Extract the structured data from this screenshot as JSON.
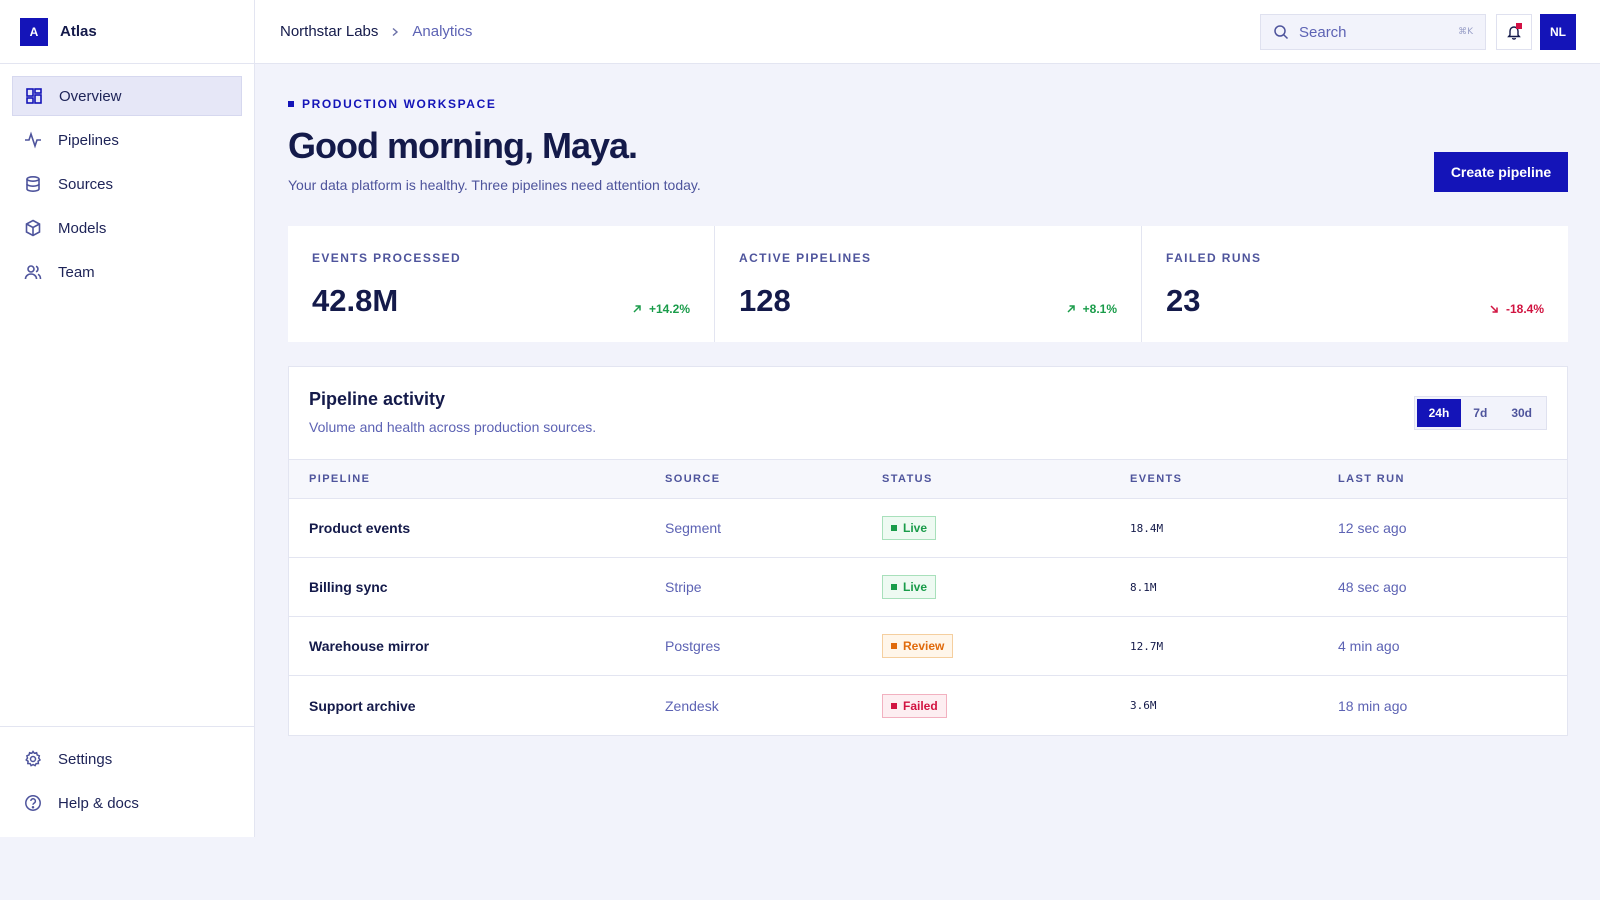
{
  "brand": {
    "logo_letter": "A",
    "name": "Atlas"
  },
  "sidebar": {
    "items": [
      {
        "label": "Overview",
        "icon": "dashboard-icon",
        "active": true
      },
      {
        "label": "Pipelines",
        "icon": "activity-icon"
      },
      {
        "label": "Sources",
        "icon": "database-icon"
      },
      {
        "label": "Models",
        "icon": "cube-icon"
      },
      {
        "label": "Team",
        "icon": "users-icon"
      }
    ],
    "bottom_items": [
      {
        "label": "Settings",
        "icon": "gear-icon"
      },
      {
        "label": "Help & docs",
        "icon": "help-icon"
      }
    ]
  },
  "topbar": {
    "breadcrumb_root": "Northstar Labs",
    "breadcrumb_current": "Analytics",
    "search_placeholder": "Search",
    "search_shortcut": "⌘K",
    "avatar_initials": "NL"
  },
  "header": {
    "eyebrow": "PRODUCTION WORKSPACE",
    "title": "Good morning, Maya.",
    "subtitle": "Your data platform is healthy. Three pipelines need attention today.",
    "create_label": "Create pipeline"
  },
  "stats": [
    {
      "label": "EVENTS PROCESSED",
      "value": "42.8M",
      "change": "+14.2%",
      "trend": "up"
    },
    {
      "label": "ACTIVE PIPELINES",
      "value": "128",
      "change": "+8.1%",
      "trend": "up"
    },
    {
      "label": "FAILED RUNS",
      "value": "23",
      "change": "-18.4%",
      "trend": "down"
    }
  ],
  "activity": {
    "title": "Pipeline activity",
    "subtitle": "Volume and health across production sources.",
    "ranges": [
      "24h",
      "7d",
      "30d"
    ],
    "selected_range": "24h",
    "columns": [
      "PIPELINE",
      "SOURCE",
      "STATUS",
      "EVENTS",
      "LAST RUN"
    ],
    "rows": [
      {
        "pipeline": "Product events",
        "source": "Segment",
        "status": "Live",
        "events": "18.4M",
        "last_run": "12 sec ago"
      },
      {
        "pipeline": "Billing sync",
        "source": "Stripe",
        "status": "Live",
        "events": "8.1M",
        "last_run": "48 sec ago"
      },
      {
        "pipeline": "Warehouse mirror",
        "source": "Postgres",
        "status": "Review",
        "events": "12.7M",
        "last_run": "4 min ago"
      },
      {
        "pipeline": "Support archive",
        "source": "Zendesk",
        "status": "Failed",
        "events": "3.6M",
        "last_run": "18 min ago"
      }
    ]
  },
  "colors": {
    "accent": "#1414b8",
    "positive": "#1a9c4a",
    "warning": "#e06a0c",
    "negative": "#d11340",
    "text": "#141a4a",
    "muted": "#5d63b4",
    "background": "#f2f3fb"
  }
}
